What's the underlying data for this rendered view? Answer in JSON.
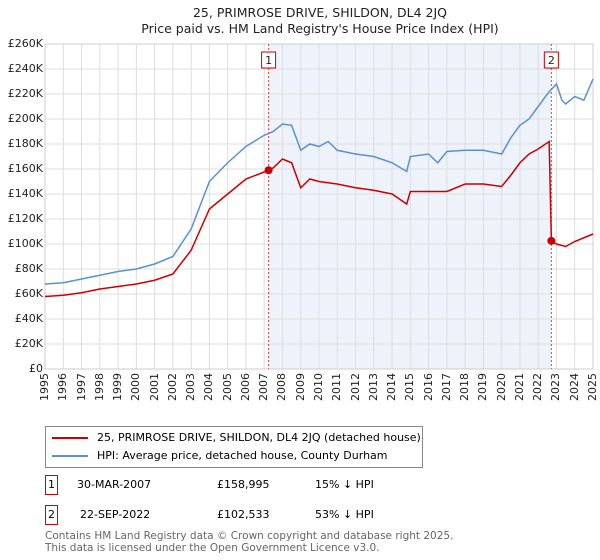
{
  "chart_data": {
    "type": "line",
    "title": "25, PRIMROSE DRIVE, SHILDON, DL4 2JQ",
    "subtitle": "Price paid vs. HM Land Registry's House Price Index (HPI)",
    "xlim": [
      1995,
      2025
    ],
    "ylim": [
      0,
      260000
    ],
    "x_ticks": [
      "1995",
      "1996",
      "1997",
      "1998",
      "1999",
      "2000",
      "2001",
      "2002",
      "2003",
      "2004",
      "2005",
      "2006",
      "2007",
      "2008",
      "2009",
      "2010",
      "2011",
      "2012",
      "2013",
      "2014",
      "2015",
      "2016",
      "2017",
      "2018",
      "2019",
      "2020",
      "2021",
      "2022",
      "2023",
      "2024",
      "2025"
    ],
    "y_ticks": [
      "£0",
      "£20K",
      "£40K",
      "£60K",
      "£80K",
      "£100K",
      "£120K",
      "£140K",
      "£160K",
      "£180K",
      "£200K",
      "£220K",
      "£240K",
      "£260K"
    ],
    "grid": true,
    "shaded_range": [
      2007.24,
      2022.72
    ],
    "series": [
      {
        "name": "25, PRIMROSE DRIVE, SHILDON, DL4 2JQ (detached house)",
        "color": "#cc0000",
        "x": [
          1995,
          1996,
          1997,
          1998,
          1999,
          2000,
          2001,
          2002,
          2003,
          2004,
          2005,
          2006,
          2007.24,
          2007.5,
          2008,
          2008.5,
          2009,
          2009.5,
          2010,
          2011,
          2012,
          2013,
          2014,
          2014.8,
          2015,
          2016,
          2017,
          2018,
          2019,
          2020,
          2020.5,
          2021,
          2021.5,
          2022,
          2022.6,
          2022.72,
          2023,
          2023.5,
          2024,
          2025
        ],
        "y": [
          58000,
          59000,
          61000,
          64000,
          66000,
          68000,
          71000,
          76000,
          95000,
          128000,
          140000,
          152000,
          158995,
          161000,
          168000,
          165000,
          145000,
          152000,
          150000,
          148000,
          145000,
          143000,
          140000,
          132000,
          142000,
          142000,
          142000,
          148000,
          148000,
          146000,
          155000,
          165000,
          172000,
          176000,
          182000,
          102533,
          100000,
          98000,
          102000,
          108000
        ]
      },
      {
        "name": "HPI: Average price, detached house, County Durham",
        "color": "#5b8fd4",
        "x": [
          1995,
          1996,
          1997,
          1998,
          1999,
          2000,
          2001,
          2002,
          2003,
          2004,
          2005,
          2006,
          2007,
          2007.5,
          2008,
          2008.5,
          2009,
          2009.5,
          2010,
          2010.5,
          2011,
          2012,
          2013,
          2014,
          2014.8,
          2015,
          2016,
          2016.5,
          2017,
          2018,
          2019,
          2020,
          2020.5,
          2021,
          2021.5,
          2022,
          2022.5,
          2023,
          2023.3,
          2023.5,
          2024,
          2024.5,
          2025
        ],
        "y": [
          68000,
          69000,
          72000,
          75000,
          78000,
          80000,
          84000,
          90000,
          112000,
          150000,
          165000,
          178000,
          187000,
          190000,
          196000,
          195000,
          175000,
          180000,
          178000,
          182000,
          175000,
          172000,
          170000,
          165000,
          158000,
          170000,
          172000,
          165000,
          174000,
          175000,
          175000,
          172000,
          185000,
          195000,
          200000,
          210000,
          220000,
          228000,
          215000,
          212000,
          218000,
          215000,
          232000
        ]
      }
    ],
    "annotations": [
      {
        "label": "1",
        "x": 2007.24,
        "y": 158995
      },
      {
        "label": "2",
        "x": 2022.72,
        "y": 102533
      }
    ],
    "legend_placement": "bottom"
  },
  "legend": {
    "property": "25, PRIMROSE DRIVE, SHILDON, DL4 2JQ (detached house)",
    "hpi": "HPI: Average price, detached house, County Durham"
  },
  "sales": [
    {
      "num": "1",
      "date": "30-MAR-2007",
      "price": "£158,995",
      "delta": "15% ↓ HPI"
    },
    {
      "num": "2",
      "date": "22-SEP-2022",
      "price": "£102,533",
      "delta": "53% ↓ HPI"
    }
  ],
  "footer": {
    "line1": "Contains HM Land Registry data © Crown copyright and database right 2025.",
    "line2": "This data is licensed under the Open Government Licence v3.0."
  },
  "colors": {
    "property": "#cc0000",
    "hpi": "#5b8fd4",
    "shade": "#eef2fb"
  }
}
